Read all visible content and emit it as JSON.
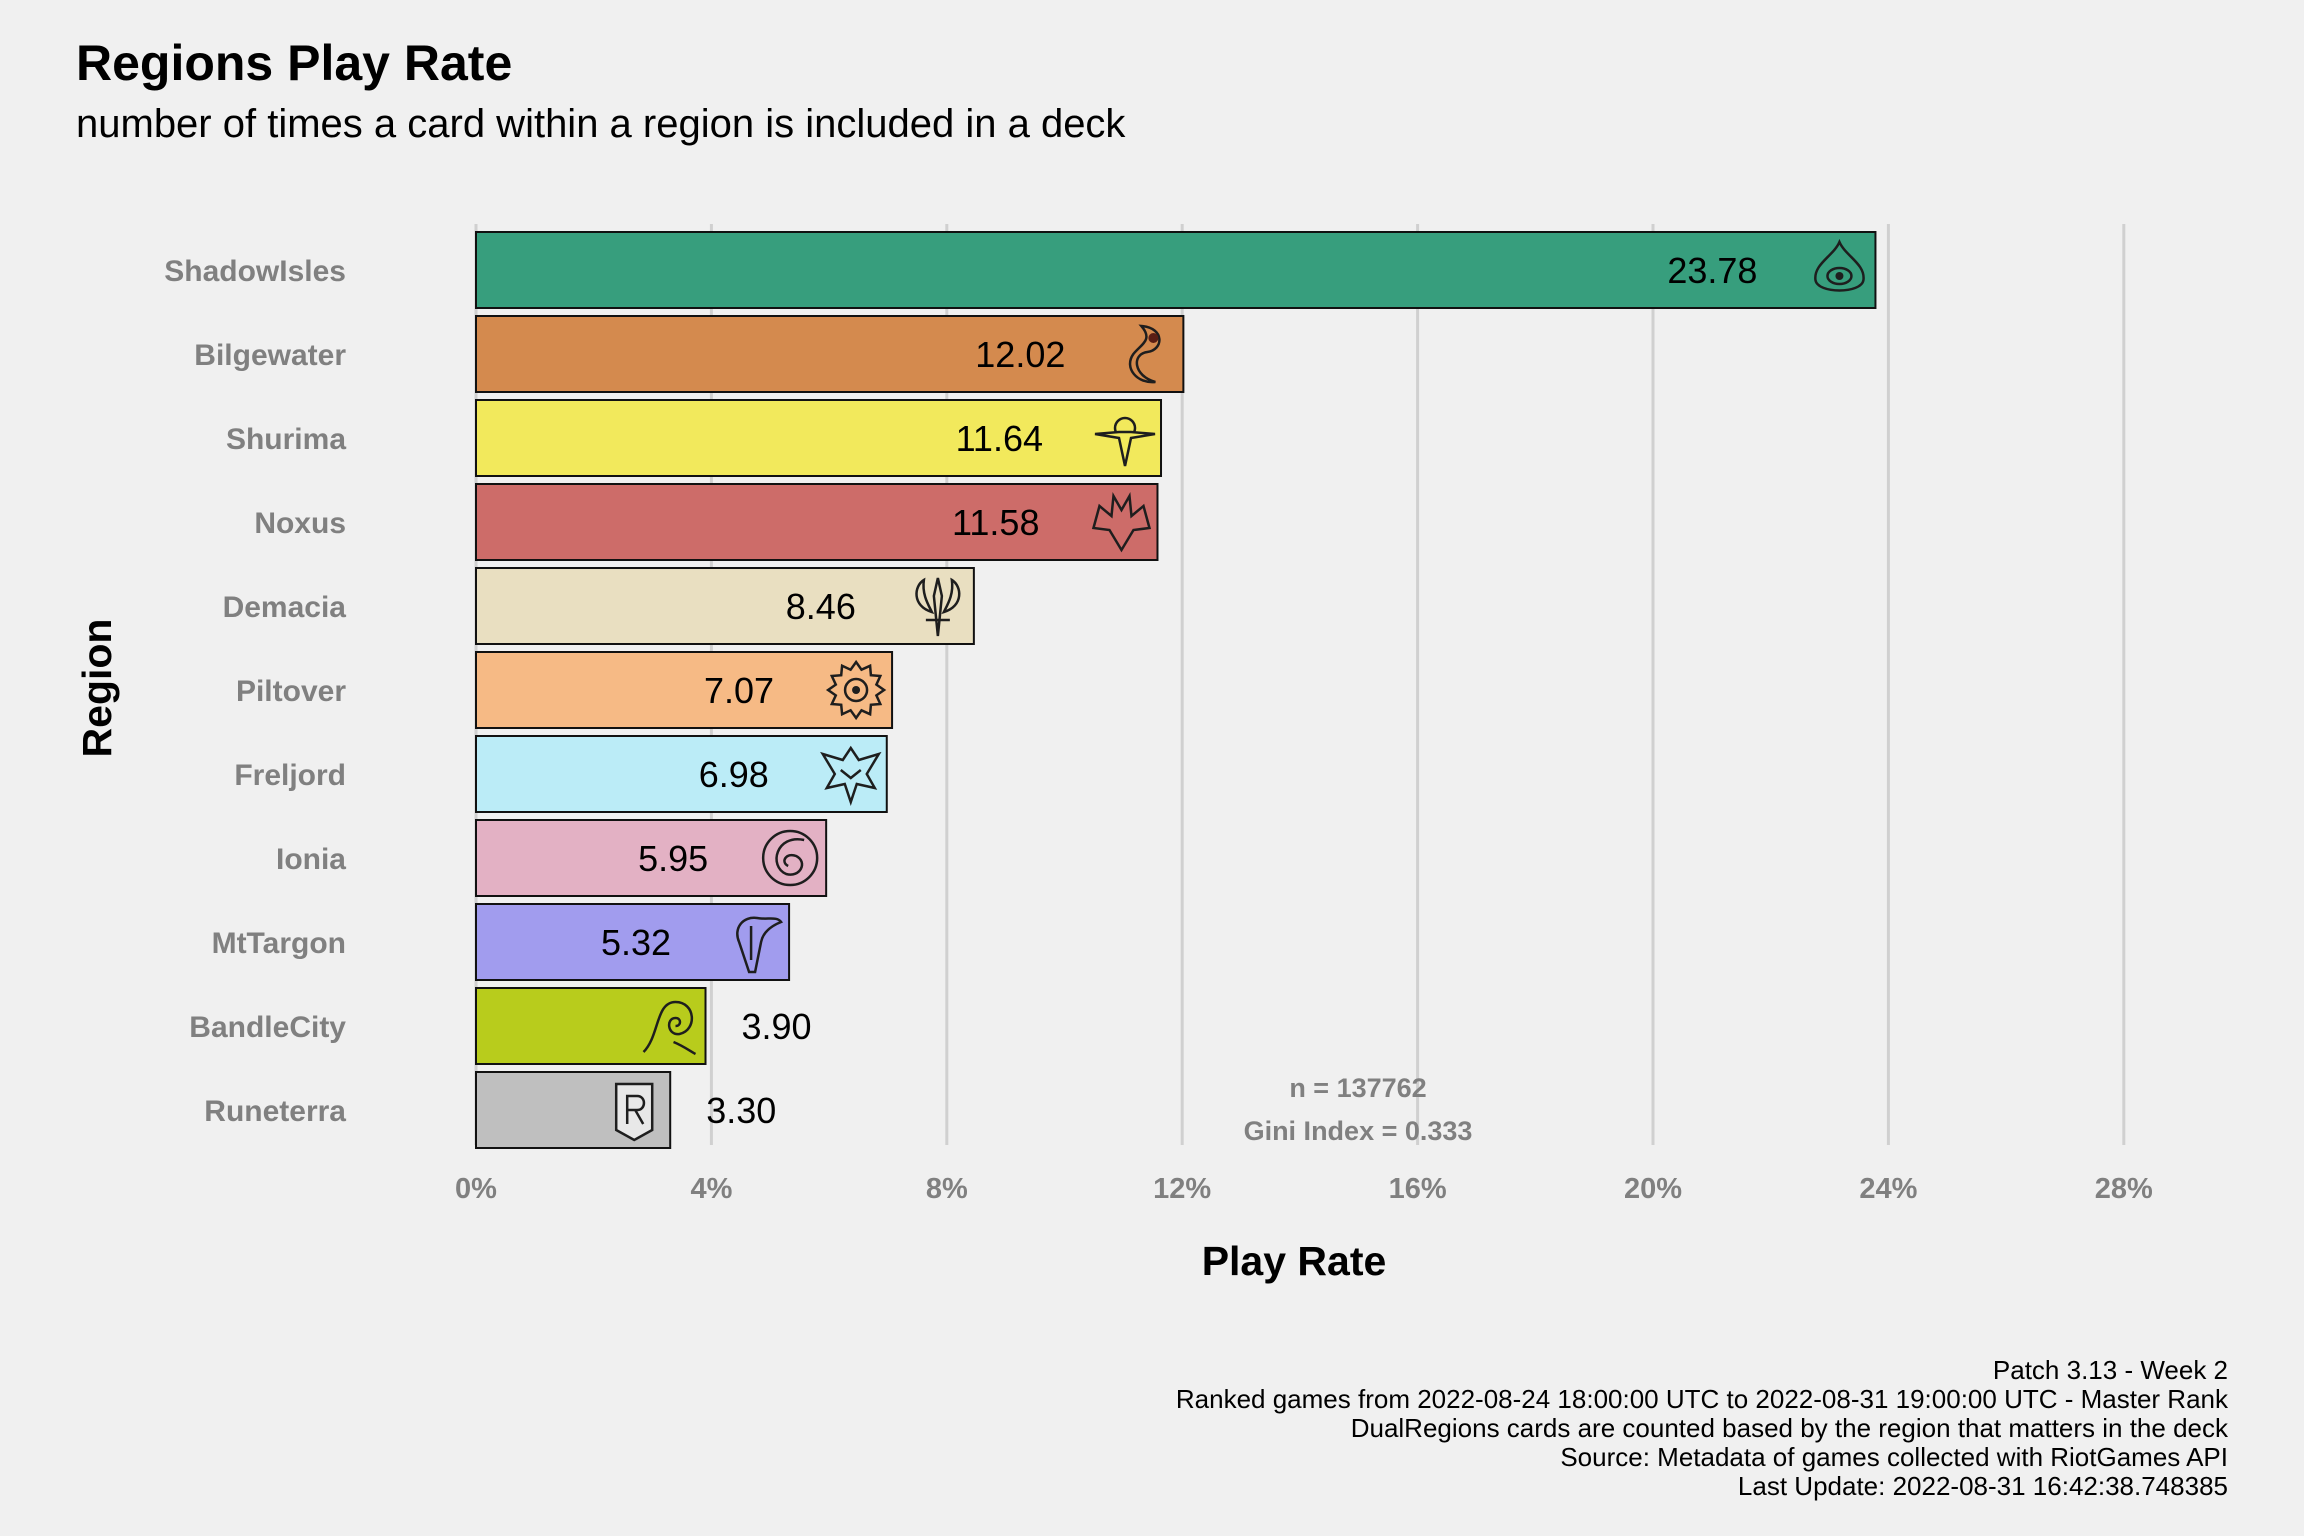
{
  "title": "Regions Play Rate",
  "subtitle": "number of times a card within a region is included in a deck",
  "caption": [
    "Patch 3.13 - Week 2",
    "Ranked games from 2022-08-24 18:00:00 UTC to 2022-08-31 19:00:00 UTC - Master Rank",
    "DualRegions cards are counted based by the region that matters in the deck",
    "Source: Metadata of games collected with RiotGames API",
    "Last Update: 2022-08-31 16:42:38.748385"
  ],
  "annotation": {
    "n": "n = 137762",
    "gini": "Gini Index = 0.333"
  },
  "chart_data": {
    "type": "bar",
    "orientation": "horizontal",
    "xlabel": "Play Rate",
    "ylabel": "Region",
    "xlim": [
      0,
      28
    ],
    "x_ticks": [
      0,
      4,
      8,
      12,
      16,
      20,
      24,
      28
    ],
    "x_tick_labels": [
      "0%",
      "4%",
      "8%",
      "12%",
      "16%",
      "20%",
      "24%",
      "28%"
    ],
    "grid": "vertical-major",
    "legend": "none",
    "categories": [
      "ShadowIsles",
      "Bilgewater",
      "Shurima",
      "Noxus",
      "Demacia",
      "Piltover",
      "Freljord",
      "Ionia",
      "MtTargon",
      "BandleCity",
      "Runeterra"
    ],
    "values": [
      23.78,
      12.02,
      11.64,
      11.58,
      8.46,
      7.07,
      6.98,
      5.95,
      5.32,
      3.9,
      3.3
    ],
    "value_labels": [
      "23.78",
      "12.02",
      "11.64",
      "11.58",
      "8.46",
      "7.07",
      "6.98",
      "5.95",
      "5.32",
      "3.90",
      "3.30"
    ],
    "colors": [
      "#379e7d",
      "#d48a4e",
      "#f2e95c",
      "#cd6c69",
      "#e9dfc1",
      "#f6ba85",
      "#bbecf7",
      "#e3b1c4",
      "#a19cee",
      "#b8cc1c",
      "#bfbfbf"
    ],
    "icon_names": [
      "shadowisles-icon",
      "bilgewater-icon",
      "shurima-icon",
      "noxus-icon",
      "demacia-icon",
      "piltover-icon",
      "freljord-icon",
      "ionia-icon",
      "mttargon-icon",
      "bandlecity-icon",
      "runeterra-icon"
    ]
  }
}
